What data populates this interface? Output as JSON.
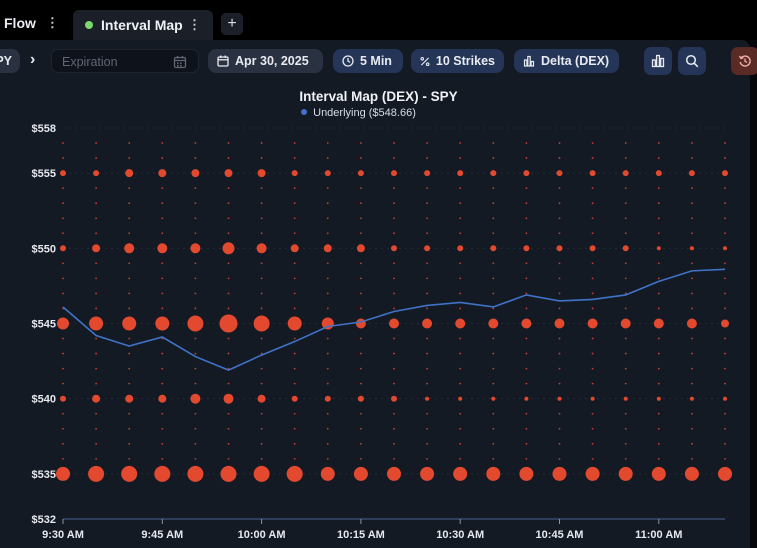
{
  "tabs": {
    "flow_label": "Flow",
    "active_label": "Interval Map",
    "add_label": "+"
  },
  "toolbar": {
    "symbol": "PY",
    "expiration_placeholder": "Expiration",
    "date_label": "Apr 30, 2025",
    "interval_label": "5 Min",
    "strikes_label": "10 Strikes",
    "greek_label": "Delta (DEX)"
  },
  "colors": {
    "bubble": "#e2492f",
    "underlying": "#3f72c8",
    "panel": "#141a23",
    "grid": "#2a3140"
  },
  "chart_data": {
    "type": "scatter",
    "title": "Interval Map (DEX) - SPY",
    "legend": [
      "Underlying ($548.66)"
    ],
    "legend_position": "top-center",
    "y_axis": {
      "min": 532,
      "max": 558,
      "ticks": [
        532,
        535,
        540,
        545,
        550,
        555,
        558
      ],
      "tick_labels": [
        "$532",
        "$535",
        "$540",
        "$545",
        "$550",
        "$555",
        "$558"
      ]
    },
    "x_axis": {
      "categories": [
        "9:30 AM",
        "9:35 AM",
        "9:40 AM",
        "9:45 AM",
        "9:50 AM",
        "9:55 AM",
        "10:00 AM",
        "10:05 AM",
        "10:10 AM",
        "10:15 AM",
        "10:20 AM",
        "10:25 AM",
        "10:30 AM",
        "10:35 AM",
        "10:40 AM",
        "10:45 AM",
        "10:50 AM",
        "10:55 AM",
        "11:00 AM",
        "11:05 AM",
        "11:10 AM"
      ],
      "tick_labels": [
        "9:30 AM",
        "9:45 AM",
        "10:00 AM",
        "10:15 AM",
        "10:30 AM",
        "10:45 AM",
        "11:00 AM"
      ]
    },
    "grid": true,
    "bubble_series": [
      {
        "strike": 555,
        "sizes": [
          3,
          3,
          4,
          4,
          4,
          4,
          4,
          3,
          3,
          3,
          3,
          3,
          3,
          3,
          3,
          3,
          3,
          3,
          3,
          3,
          3
        ]
      },
      {
        "strike": 550,
        "sizes": [
          3,
          4,
          5,
          5,
          5,
          6,
          5,
          4,
          4,
          4,
          3,
          3,
          3,
          3,
          3,
          3,
          3,
          3,
          2,
          2,
          2
        ]
      },
      {
        "strike": 545,
        "sizes": [
          6,
          7,
          7,
          7,
          8,
          9,
          8,
          7,
          6,
          5,
          5,
          5,
          5,
          5,
          5,
          5,
          5,
          5,
          5,
          5,
          4
        ]
      },
      {
        "strike": 540,
        "sizes": [
          3,
          4,
          4,
          4,
          5,
          5,
          4,
          3,
          3,
          3,
          3,
          2,
          2,
          2,
          2,
          2,
          2,
          2,
          2,
          2,
          2
        ]
      },
      {
        "strike": 535,
        "sizes": [
          7,
          8,
          8,
          8,
          8,
          8,
          8,
          8,
          7,
          7,
          7,
          7,
          7,
          7,
          7,
          7,
          7,
          7,
          7,
          7,
          7
        ]
      }
    ],
    "underlying_series": {
      "name": "Underlying ($548.66)",
      "values": [
        546.1,
        544.2,
        543.5,
        544.1,
        542.8,
        541.9,
        542.9,
        543.8,
        544.8,
        545.1,
        545.8,
        546.2,
        546.4,
        546.1,
        546.9,
        546.5,
        546.6,
        546.9,
        547.8,
        548.5,
        548.6
      ]
    },
    "dot_strikes": [
      536,
      537,
      538,
      539,
      541,
      542,
      543,
      544,
      546,
      547,
      548,
      549,
      551,
      552,
      553,
      554,
      556,
      557
    ]
  }
}
